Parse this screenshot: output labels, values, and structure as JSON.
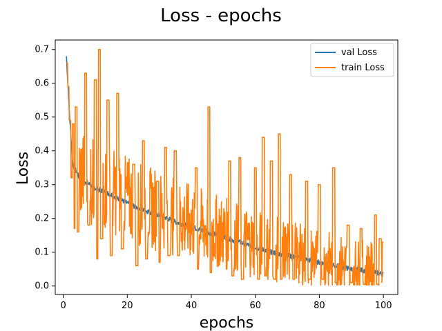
{
  "chart_data": {
    "type": "line",
    "title": "Loss - epochs",
    "xlabel": "epochs",
    "ylabel": "Loss",
    "xlim": [
      -2.5,
      104.5
    ],
    "ylim": [
      -0.025,
      0.728
    ],
    "xticks": [
      0,
      20,
      40,
      60,
      80,
      100
    ],
    "yticks": [
      0.0,
      0.1,
      0.2,
      0.3,
      0.4,
      0.5,
      0.6,
      0.7
    ],
    "xtick_labels": [
      "0",
      "20",
      "40",
      "60",
      "80",
      "100"
    ],
    "ytick_labels": [
      "0.0",
      "0.1",
      "0.2",
      "0.3",
      "0.4",
      "0.5",
      "0.6",
      "0.7"
    ],
    "grid": false,
    "legend_position": "top-right",
    "x_range": [
      1,
      100
    ],
    "series": [
      {
        "name": "val Loss",
        "color": "#1f77b4",
        "anchors": [
          [
            1,
            0.68
          ],
          [
            2,
            0.5
          ],
          [
            3,
            0.36
          ],
          [
            5,
            0.32
          ],
          [
            10,
            0.29
          ],
          [
            15,
            0.27
          ],
          [
            20,
            0.245
          ],
          [
            25,
            0.225
          ],
          [
            30,
            0.21
          ],
          [
            35,
            0.19
          ],
          [
            40,
            0.175
          ],
          [
            45,
            0.16
          ],
          [
            50,
            0.145
          ],
          [
            55,
            0.13
          ],
          [
            60,
            0.115
          ],
          [
            65,
            0.1
          ],
          [
            70,
            0.09
          ],
          [
            75,
            0.08
          ],
          [
            80,
            0.07
          ],
          [
            85,
            0.06
          ],
          [
            90,
            0.05
          ],
          [
            95,
            0.045
          ],
          [
            100,
            0.035
          ]
        ]
      },
      {
        "name": "train Loss",
        "color": "#ff7f0e",
        "anchors": [
          [
            1,
            0.66
          ],
          [
            1.5,
            0.59
          ],
          [
            2,
            0.49
          ],
          [
            2.5,
            0.32
          ],
          [
            3,
            0.48
          ],
          [
            3.3,
            0.17
          ],
          [
            4,
            0.53
          ],
          [
            4.5,
            0.16
          ],
          [
            7,
            0.63
          ],
          [
            8,
            0.18
          ],
          [
            10,
            0.61
          ],
          [
            10.5,
            0.08
          ],
          [
            11.3,
            0.7
          ],
          [
            12,
            0.14
          ],
          [
            14,
            0.55
          ],
          [
            15,
            0.09
          ],
          [
            17,
            0.57
          ],
          [
            18.5,
            0.11
          ],
          [
            22,
            0.36
          ],
          [
            23,
            0.06
          ],
          [
            25,
            0.43
          ],
          [
            26,
            0.08
          ],
          [
            29.5,
            0.31
          ],
          [
            30,
            0.07
          ],
          [
            32,
            0.41
          ],
          [
            33,
            0.09
          ],
          [
            35,
            0.4
          ],
          [
            36,
            0.09
          ],
          [
            41.5,
            0.35
          ],
          [
            42,
            0.05
          ],
          [
            45.5,
            0.53
          ],
          [
            46,
            0.04
          ],
          [
            52,
            0.37
          ],
          [
            53,
            0.03
          ],
          [
            55.2,
            0.38
          ],
          [
            56,
            0.02
          ],
          [
            60,
            0.35
          ],
          [
            61,
            0.02
          ],
          [
            62.5,
            0.44
          ],
          [
            63,
            0.03
          ],
          [
            65,
            0.37
          ],
          [
            66,
            0.02
          ],
          [
            67.5,
            0.45
          ],
          [
            68,
            0.02
          ],
          [
            71,
            0.33
          ],
          [
            72,
            0.02
          ],
          [
            76,
            0.31
          ],
          [
            77,
            0.02
          ],
          [
            80,
            0.3
          ],
          [
            81,
            0.02
          ],
          [
            84.5,
            0.35
          ],
          [
            85,
            0.01
          ],
          [
            89,
            0.18
          ],
          [
            90,
            0.01
          ],
          [
            93,
            0.17
          ],
          [
            94,
            0.005
          ],
          [
            97.5,
            0.21
          ],
          [
            98,
            0.005
          ],
          [
            99,
            0.14
          ],
          [
            100,
            0.13
          ]
        ],
        "noise_amplitude": 0.12
      }
    ]
  }
}
